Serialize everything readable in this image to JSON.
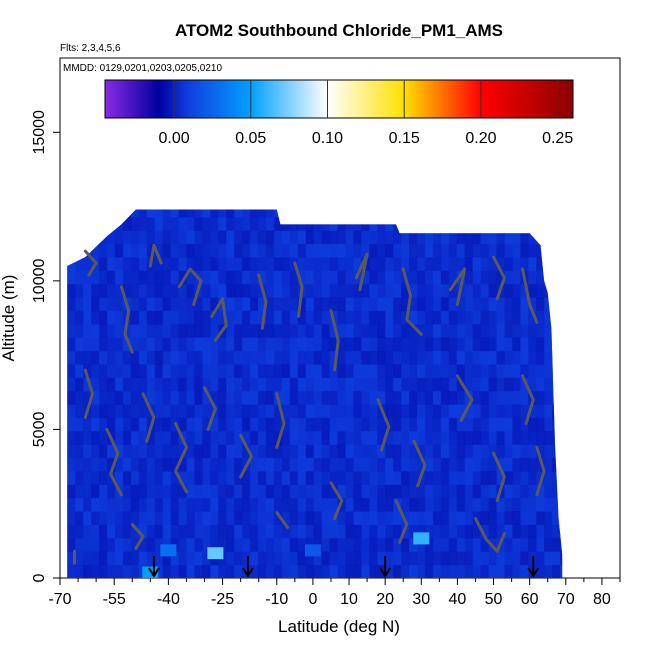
{
  "chart_data": {
    "type": "heatmap",
    "title": "ATOM2 Southbound Chloride_PM1_AMS",
    "notes": {
      "flights": "Flts: 2,3,4,5,6",
      "dates": "MMDD: 0129,0201,0203,0205,0210"
    },
    "xlabel": "Latitude (deg N)",
    "ylabel": "Altitude (m)",
    "xlim": [
      -70,
      85
    ],
    "ylim": [
      0,
      17500
    ],
    "x_ticks": [
      -70,
      -55,
      -40,
      -25,
      -10,
      0,
      10,
      20,
      30,
      40,
      50,
      60,
      70,
      80
    ],
    "x_tick_labels": [
      "-70",
      "-55",
      "-40",
      "-25",
      "-10",
      "0",
      "10",
      "20",
      "30",
      "40",
      "50",
      "60",
      "70",
      "80"
    ],
    "y_ticks": [
      0,
      5000,
      10000,
      15000
    ],
    "y_tick_labels": [
      "0",
      "5000",
      "10000",
      "15000"
    ],
    "colorbar": {
      "range": [
        -0.045,
        0.26
      ],
      "ticks": [
        0.0,
        0.05,
        0.1,
        0.15,
        0.2,
        0.25
      ],
      "tick_labels": [
        "0.00",
        "0.05",
        "0.10",
        "0.15",
        "0.20",
        "0.25"
      ],
      "colors": [
        "#8a2be2",
        "#0000a0",
        "#1040e0",
        "#00a0ff",
        "#ffffff",
        "#ffe000",
        "#ff0000",
        "#8b0000"
      ]
    },
    "data_extent_top": [
      [
        -68,
        10500
      ],
      [
        -63,
        10800
      ],
      [
        -57,
        11500
      ],
      [
        -53,
        11900
      ],
      [
        -49,
        12400
      ],
      [
        -10,
        12400
      ],
      [
        -9,
        11900
      ],
      [
        23,
        11900
      ],
      [
        24,
        11600
      ],
      [
        60,
        11600
      ],
      [
        63,
        11200
      ],
      [
        64,
        10000
      ],
      [
        65,
        9600
      ],
      [
        66,
        8400
      ],
      [
        67,
        4500
      ],
      [
        68,
        2000
      ],
      [
        69,
        800
      ],
      [
        69,
        0
      ]
    ],
    "background_value": 0.005,
    "highlights": [
      {
        "lat": -45,
        "alt": 150,
        "value": 0.05
      },
      {
        "lat": -27,
        "alt": 800,
        "value": 0.07
      },
      {
        "lat": 30,
        "alt": 1300,
        "value": 0.06
      },
      {
        "lat": -40,
        "alt": 900,
        "value": 0.03
      },
      {
        "lat": 0,
        "alt": 900,
        "value": 0.02
      }
    ],
    "contours": [
      [
        [
          -62,
          10200
        ],
        [
          -60,
          10600
        ],
        [
          -63,
          11000
        ]
      ],
      [
        [
          -53,
          9800
        ],
        [
          -51,
          9000
        ],
        [
          -52,
          8200
        ],
        [
          -50,
          7600
        ]
      ],
      [
        [
          -45,
          10500
        ],
        [
          -44,
          11200
        ],
        [
          -42,
          10600
        ]
      ],
      [
        [
          -37,
          9800
        ],
        [
          -34,
          10400
        ],
        [
          -31,
          10000
        ],
        [
          -33,
          9200
        ]
      ],
      [
        [
          -28,
          8800
        ],
        [
          -25,
          9400
        ],
        [
          -24,
          8500
        ],
        [
          -27,
          8000
        ]
      ],
      [
        [
          -15,
          10200
        ],
        [
          -13,
          9300
        ],
        [
          -14,
          8400
        ]
      ],
      [
        [
          -5,
          10600
        ],
        [
          -3,
          9800
        ],
        [
          -4,
          8800
        ]
      ],
      [
        [
          5,
          9000
        ],
        [
          7,
          8000
        ],
        [
          6,
          7000
        ]
      ],
      [
        [
          12,
          10100
        ],
        [
          15,
          10900
        ],
        [
          13,
          9700
        ]
      ],
      [
        [
          25,
          10400
        ],
        [
          27,
          9500
        ],
        [
          26,
          8700
        ],
        [
          30,
          8200
        ]
      ],
      [
        [
          38,
          9700
        ],
        [
          42,
          10400
        ],
        [
          40,
          9200
        ]
      ],
      [
        [
          50,
          10800
        ],
        [
          53,
          10100
        ],
        [
          51,
          9400
        ]
      ],
      [
        [
          58,
          10400
        ],
        [
          60,
          9200
        ],
        [
          62,
          8600
        ]
      ],
      [
        [
          -63,
          7000
        ],
        [
          -61,
          6200
        ],
        [
          -63,
          5400
        ]
      ],
      [
        [
          -57,
          5000
        ],
        [
          -54,
          4200
        ],
        [
          -56,
          3500
        ],
        [
          -53,
          2800
        ]
      ],
      [
        [
          -47,
          6200
        ],
        [
          -44,
          5400
        ],
        [
          -46,
          4600
        ]
      ],
      [
        [
          -38,
          5200
        ],
        [
          -35,
          4400
        ],
        [
          -38,
          3600
        ],
        [
          -35,
          2900
        ]
      ],
      [
        [
          -30,
          6400
        ],
        [
          -27,
          5700
        ],
        [
          -29,
          5000
        ]
      ],
      [
        [
          -20,
          4800
        ],
        [
          -17,
          4100
        ],
        [
          -20,
          3400
        ]
      ],
      [
        [
          -10,
          6200
        ],
        [
          -8,
          5200
        ],
        [
          -10,
          4400
        ]
      ],
      [
        [
          5,
          3200
        ],
        [
          8,
          2600
        ],
        [
          6,
          2000
        ]
      ],
      [
        [
          18,
          6000
        ],
        [
          21,
          5100
        ],
        [
          19,
          4300
        ]
      ],
      [
        [
          28,
          4600
        ],
        [
          31,
          3800
        ],
        [
          29,
          3100
        ]
      ],
      [
        [
          40,
          6800
        ],
        [
          44,
          6000
        ],
        [
          41,
          5300
        ]
      ],
      [
        [
          50,
          4200
        ],
        [
          53,
          3400
        ],
        [
          51,
          2600
        ]
      ],
      [
        [
          58,
          6800
        ],
        [
          61,
          6000
        ],
        [
          59,
          5200
        ]
      ],
      [
        [
          62,
          4400
        ],
        [
          64,
          3600
        ],
        [
          62,
          2800
        ]
      ],
      [
        [
          -50,
          1800
        ],
        [
          -47,
          1400
        ],
        [
          -49,
          1000
        ]
      ],
      [
        [
          -10,
          2200
        ],
        [
          -7,
          1700
        ]
      ],
      [
        [
          23,
          2600
        ],
        [
          26,
          1800
        ],
        [
          24,
          1200
        ]
      ],
      [
        [
          45,
          2000
        ],
        [
          48,
          1300
        ],
        [
          51,
          900
        ],
        [
          53,
          1500
        ]
      ],
      [
        [
          -66,
          900
        ],
        [
          -66,
          500
        ]
      ]
    ],
    "arrows_lat": [
      -44,
      -18,
      20,
      61
    ]
  }
}
